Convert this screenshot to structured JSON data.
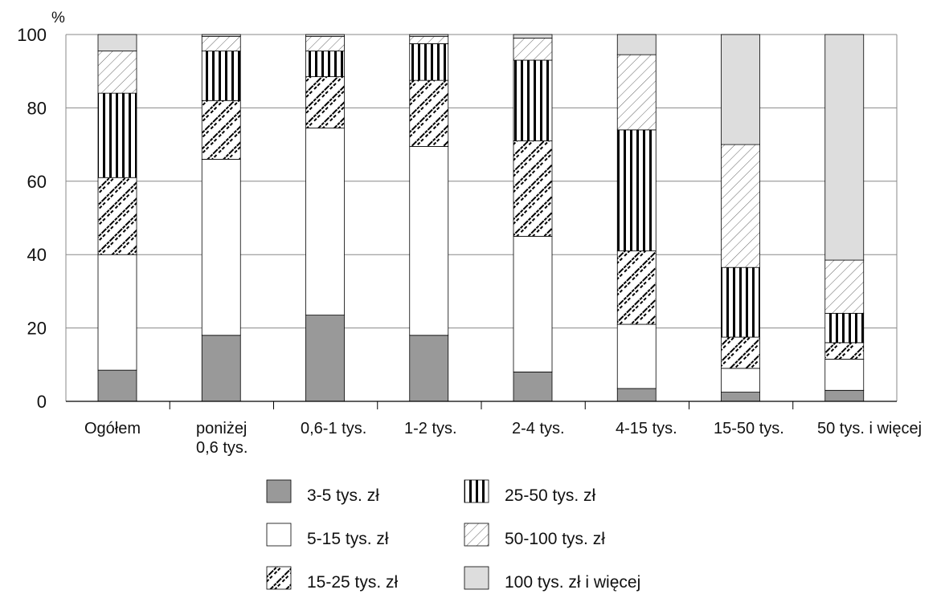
{
  "chart_data": {
    "type": "bar",
    "stacked": true,
    "title": "",
    "xlabel": "",
    "ylabel": "%",
    "ylim": [
      0,
      100
    ],
    "yticks": [
      0,
      20,
      40,
      60,
      80,
      100
    ],
    "grid": true,
    "legend_position": "bottom",
    "categories": [
      "Ogółem",
      "poniżej\n0,6 tys.",
      "0,6-1 tys.",
      "1-2 tys.",
      "2-4 tys.",
      "4-15 tys.",
      "15-50 tys.",
      "50 tys. i więcej"
    ],
    "series": [
      {
        "name": "3-5 tys. zł",
        "color": "#999999",
        "pattern": "solid-gray",
        "values": [
          8.5,
          18,
          23.5,
          18,
          8,
          3.5,
          2.5,
          3
        ]
      },
      {
        "name": "5-15 tys. zł",
        "color": "#ffffff",
        "pattern": "white",
        "values": [
          31.5,
          48,
          51,
          51.5,
          37,
          17.5,
          6.5,
          8.5
        ]
      },
      {
        "name": "15-25 tys. zł",
        "color": "#ffffff",
        "pattern": "dotted-diagonal",
        "values": [
          21,
          16,
          14,
          18,
          26,
          20,
          8.5,
          4.5
        ]
      },
      {
        "name": "25-50 tys. zł",
        "color": "#ffffff",
        "pattern": "vertical-lines",
        "values": [
          23,
          13.5,
          7,
          10,
          22,
          33,
          19,
          8
        ]
      },
      {
        "name": "50-100 tys. zł",
        "color": "#ffffff",
        "pattern": "diagonal-hatch",
        "values": [
          11.5,
          4,
          4,
          2,
          6,
          20.5,
          33.5,
          14.5
        ]
      },
      {
        "name": "100 tys. zł i więcej",
        "color": "#dddddd",
        "pattern": "solid-light",
        "values": [
          4.5,
          0.5,
          0.5,
          0.5,
          1,
          5.5,
          30,
          61.5
        ]
      }
    ]
  }
}
